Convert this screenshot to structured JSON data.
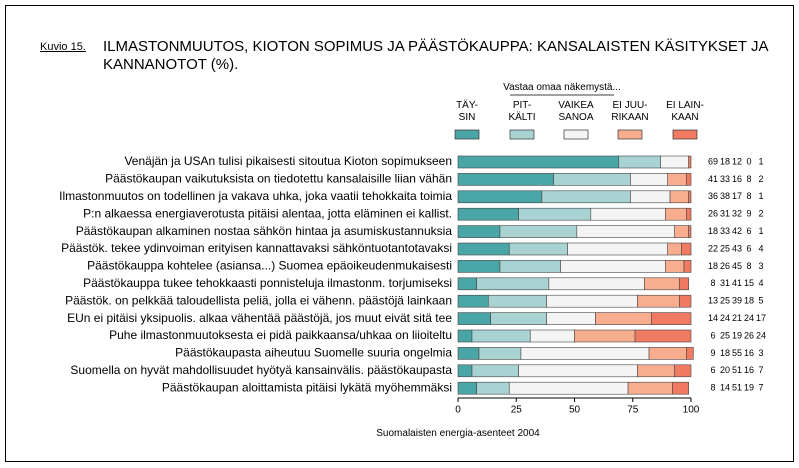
{
  "chart_data": {
    "type": "stacked-bar-horizontal",
    "figure_label": "Kuvio 15.",
    "title": "ILMASTONMUUTOS, KIOTON SOPIMUS JA PÄÄSTÖKAUPPA: KANSALAISTEN KÄSITYKSET JA KANNANOTOT (%).",
    "legend_title": "Vastaa omaa näkemystä...",
    "x_label": "Suomalaisten energia-asenteet 2004",
    "categories": [
      "Venäjän ja USAn tulisi pikaisesti sitoutua Kioton sopimukseen",
      "Päästökaupan vaikutuksista on tiedotettu kansalaisille liian vähän",
      "Ilmastonmuutos on todellinen ja vakava uhka, joka vaatii tehokkaita toimia",
      "P:n alkaessa energiaverotusta pitäisi alentaa, jotta eläminen ei kallist.",
      "Päästökaupan alkaminen nostaa sähkön hintaa ja asumiskustannuksia",
      "Päästök. tekee ydinvoiman erityisen kannattavaksi sähköntuotantotavaksi",
      "Päästökauppa kohtelee (asiansa...) Suomea epäoikeudenmukaisesti",
      "Päästökauppa tukee tehokkaasti ponnisteluja ilmastonm. torjumiseksi",
      "Päästök. on pelkkää taloudellista peliä, jolla ei vähenn. päästöjä lainkaan",
      "EUn ei pitäisi yksipuolis. alkaa vähentää päästöjä, jos muut eivät sitä tee",
      "Puhe ilmastonmuutoksesta ei pidä paikkaansa/uhkaa on liioiteltu",
      "Päästökaupasta aiheutuu Suomelle suuria ongelmia",
      "Suomella on hyvät mahdollisuudet hyötyä kansainvälis. päästökaupasta",
      "Päästökaupan aloittamista pitäisi lykätä myöhemmäksi"
    ],
    "series": [
      {
        "name": "TÄY-\nSIN",
        "color": "#4aa6a6",
        "values": [
          69,
          41,
          36,
          26,
          18,
          22,
          18,
          8,
          13,
          14,
          6,
          9,
          6,
          8
        ]
      },
      {
        "name": "PIT-\nKÄLTI",
        "color": "#a9d2d2",
        "values": [
          18,
          33,
          38,
          31,
          33,
          25,
          26,
          31,
          25,
          24,
          25,
          18,
          20,
          14
        ]
      },
      {
        "name": "VAIKEA\nSANOA",
        "color": "#f4f4f4",
        "values": [
          12,
          16,
          17,
          32,
          42,
          43,
          45,
          41,
          39,
          21,
          19,
          55,
          51,
          51
        ]
      },
      {
        "name": "EI JUU-\nRIKAAN",
        "color": "#f8ae8e",
        "values": [
          0,
          8,
          8,
          9,
          6,
          6,
          8,
          15,
          18,
          24,
          26,
          16,
          16,
          19
        ]
      },
      {
        "name": "EI LAIN-\nKAAN",
        "color": "#f07a62",
        "values": [
          1,
          2,
          1,
          2,
          1,
          4,
          3,
          4,
          5,
          17,
          24,
          3,
          7,
          7
        ]
      }
    ],
    "xlim": [
      0,
      100
    ],
    "xticks": [
      0,
      25,
      50,
      75,
      100
    ]
  }
}
